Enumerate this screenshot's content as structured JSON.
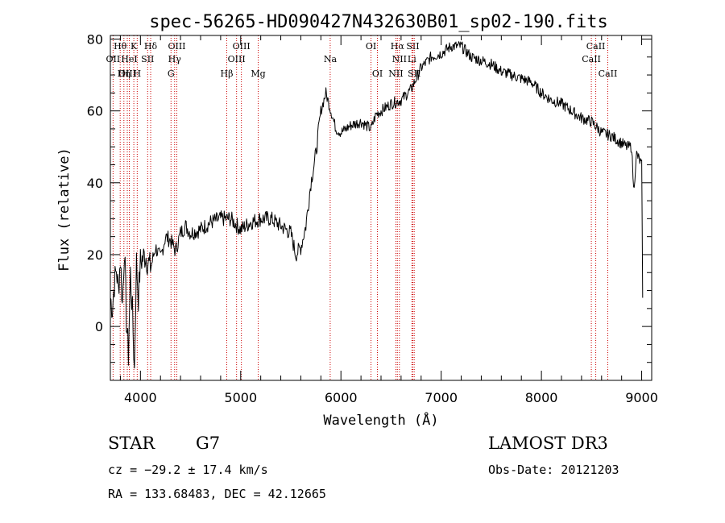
{
  "chart_data": {
    "type": "line",
    "title": "spec-56265-HD090427N432630B01_sp02-190.fits",
    "xlabel": "Wavelength (Å)",
    "ylabel": "Flux (relative)",
    "xlim": [
      3700,
      9100
    ],
    "ylim": [
      -15,
      81
    ],
    "xticks": [
      4000,
      5000,
      6000,
      7000,
      8000,
      9000
    ],
    "yticks": [
      0,
      20,
      40,
      60,
      80
    ],
    "series": [
      {
        "name": "flux",
        "x": [
          3700,
          3720,
          3740,
          3760,
          3780,
          3800,
          3820,
          3840,
          3860,
          3880,
          3900,
          3920,
          3940,
          3960,
          3980,
          4000,
          4050,
          4100,
          4150,
          4200,
          4250,
          4300,
          4350,
          4400,
          4450,
          4500,
          4600,
          4700,
          4800,
          4900,
          5000,
          5100,
          5200,
          5300,
          5400,
          5500,
          5550,
          5600,
          5650,
          5700,
          5750,
          5800,
          5850,
          5900,
          5950,
          6000,
          6100,
          6200,
          6300,
          6350,
          6400,
          6500,
          6600,
          6700,
          6800,
          6900,
          7000,
          7100,
          7200,
          7300,
          7400,
          7500,
          7600,
          7700,
          7800,
          7900,
          8000,
          8100,
          8200,
          8300,
          8400,
          8500,
          8600,
          8700,
          8800,
          8850,
          8900,
          8920,
          8950,
          9000,
          9010
        ],
        "y": [
          8,
          5,
          12,
          16,
          10,
          19,
          6,
          22,
          2,
          -8,
          15,
          4,
          -12,
          18,
          8,
          18,
          20,
          16,
          22,
          19,
          25,
          24,
          21,
          26,
          28,
          26,
          27,
          29,
          30,
          30,
          27,
          29,
          30,
          30,
          28,
          26,
          20,
          22,
          28,
          40,
          48,
          60,
          65,
          60,
          55,
          54,
          56,
          57,
          55,
          59,
          60,
          62,
          63,
          66,
          72,
          75,
          76,
          78,
          78,
          75,
          74,
          73,
          71,
          70,
          69,
          68,
          65,
          63,
          62,
          60,
          58,
          57,
          54,
          53,
          51,
          50,
          50,
          38,
          48,
          45,
          8
        ]
      }
    ],
    "lines": [
      {
        "name": "Hθ",
        "wl": 3798,
        "row": 1
      },
      {
        "name": "OII",
        "wl": 3727,
        "row": 2
      },
      {
        "name": "OIII",
        "wl": 3869,
        "row": 3
      },
      {
        "name": "K",
        "wl": 3934,
        "row": 1
      },
      {
        "name": "HeI",
        "wl": 3889,
        "row": 2
      },
      {
        "name": "Hη",
        "wl": 3835,
        "row": 3
      },
      {
        "name": "SII",
        "wl": 4072,
        "row": 2
      },
      {
        "name": "H",
        "wl": 3968,
        "row": 3
      },
      {
        "name": "Hδ",
        "wl": 4102,
        "row": 1
      },
      {
        "name": "OIII",
        "wl": 4363,
        "row": 1
      },
      {
        "name": "Hγ",
        "wl": 4341,
        "row": 2
      },
      {
        "name": "G",
        "wl": 4305,
        "row": 3
      },
      {
        "name": "OIII",
        "wl": 5007,
        "row": 1
      },
      {
        "name": "OIII",
        "wl": 4959,
        "row": 2
      },
      {
        "name": "Hβ",
        "wl": 4861,
        "row": 3
      },
      {
        "name": "Mg",
        "wl": 5175,
        "row": 3
      },
      {
        "name": "Na",
        "wl": 5893,
        "row": 2
      },
      {
        "name": "OI",
        "wl": 6300,
        "row": 1
      },
      {
        "name": "OI",
        "wl": 6364,
        "row": 3
      },
      {
        "name": "Hα",
        "wl": 6563,
        "row": 1
      },
      {
        "name": "NII",
        "wl": 6583,
        "row": 2
      },
      {
        "name": "NII",
        "wl": 6548,
        "row": 3
      },
      {
        "name": "SII",
        "wl": 6717,
        "row": 1
      },
      {
        "name": "Li",
        "wl": 6708,
        "row": 2
      },
      {
        "name": "SII",
        "wl": 6731,
        "row": 3
      },
      {
        "name": "CaII",
        "wl": 8542,
        "row": 1
      },
      {
        "name": "CaII",
        "wl": 8498,
        "row": 2
      },
      {
        "name": "CaII",
        "wl": 8662,
        "row": 3
      }
    ],
    "line_color": "#cc0000"
  },
  "info": {
    "object_class": "STAR",
    "subclass": "G7",
    "survey": "LAMOST DR3",
    "redshift": "cz = −29.2 ± 17.4 km/s",
    "obs_date": "Obs-Date: 20121203",
    "coords": "RA = 133.68483, DEC =  42.12665"
  }
}
